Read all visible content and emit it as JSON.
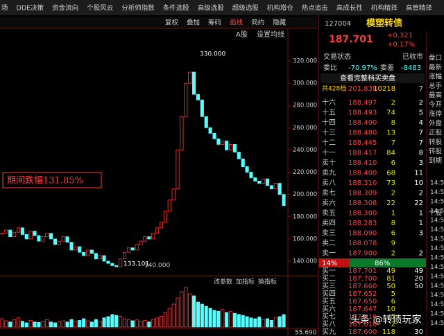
{
  "menu": [
    "场",
    "DDE决策",
    "资金流向",
    "个股风云",
    "分析师指数",
    "条件选股",
    "高级选股",
    "超级选股",
    "机构增仓",
    "热点追击",
    "高成长性",
    "机构精择",
    "高管精择"
  ],
  "toolbar": [
    "复权",
    "叠加",
    "筹码",
    "画线",
    "简约",
    "隐藏"
  ],
  "chart_header": {
    "market": "A股",
    "ma_setting": "设置均线"
  },
  "chart_data": {
    "type": "candle",
    "color_up": "#ff3c3c",
    "color_down": "#54ffff",
    "closes": [
      165,
      168,
      162,
      166,
      170,
      164,
      160,
      167,
      163,
      158,
      162,
      165,
      160,
      155,
      158,
      162,
      157,
      150,
      153,
      148,
      145,
      150,
      147,
      142,
      145,
      140,
      138,
      136,
      135,
      142,
      148,
      152,
      150,
      155,
      158,
      162,
      160,
      165,
      170,
      175,
      185,
      195,
      205,
      240,
      270,
      300,
      310,
      290,
      285,
      270,
      260,
      255,
      250,
      245,
      248,
      240,
      245,
      238,
      232,
      225,
      220,
      215,
      212,
      210,
      214,
      208,
      205,
      210,
      200,
      190
    ],
    "volumes": [
      20,
      15,
      12,
      18,
      22,
      14,
      10,
      16,
      12,
      11,
      14,
      18,
      12,
      10,
      13,
      15,
      12,
      18,
      14,
      16,
      20,
      15,
      12,
      18,
      14,
      22,
      25,
      30,
      28,
      26,
      20,
      18,
      15,
      17,
      14,
      16,
      12,
      18,
      22,
      26,
      35,
      45,
      55,
      70,
      85,
      95,
      80,
      75,
      60,
      55,
      50,
      45,
      40,
      38,
      42,
      35,
      38,
      33,
      30,
      28,
      25,
      22,
      20,
      24,
      18,
      20,
      16,
      22,
      25,
      30
    ],
    "ylim": [
      128,
      336
    ],
    "yticks": [
      {
        "value": 140,
        "label": "140.000"
      },
      {
        "value": 160,
        "label": "160.000"
      },
      {
        "value": 180,
        "label": "180.000"
      },
      {
        "value": 200,
        "label": "200.000"
      },
      {
        "value": 220,
        "label": "220.000"
      },
      {
        "value": 240,
        "label": "240.000"
      },
      {
        "value": 260,
        "label": "260.000"
      },
      {
        "value": 280,
        "label": "280.000"
      },
      {
        "value": 300,
        "label": "300.000"
      },
      {
        "value": 320,
        "label": "320.000"
      }
    ],
    "volume_ylim": [
      0,
      100
    ],
    "annotations": {
      "high": "330.000",
      "low": "133.101",
      "low_ref": "140.000",
      "period": "期间跌幅131.85%"
    }
  },
  "sub_panel": {
    "buttons": [
      "改参数",
      "加指标",
      "换指标"
    ],
    "value": "55.690"
  },
  "quote": {
    "code": "127004",
    "name": "模塑转债",
    "price": "187.701",
    "change": "+0.321",
    "change_pct": "+0.17%"
  },
  "status": {
    "state_label": "交易状态",
    "state": "已收市",
    "ratio_label": "委比",
    "ratio": "-70.97%",
    "diff_label": "委差",
    "diff": "-8483",
    "full_book": "查看完整档买卖盘",
    "total": "共428档",
    "total_price": "201.838",
    "total_vol": "10218",
    "total_n": "7"
  },
  "sell_levels": [
    {
      "label": "十六",
      "price": "188.497",
      "volume": "2",
      "delta": "2"
    },
    {
      "label": "十五",
      "price": "188.493",
      "volume": "74",
      "delta": "5"
    },
    {
      "label": "十四",
      "price": "188.490",
      "volume": "8",
      "delta": "4"
    },
    {
      "label": "十三",
      "price": "188.480",
      "volume": "13",
      "delta": "7"
    },
    {
      "label": "十二",
      "price": "188.445",
      "volume": "7",
      "delta": "7"
    },
    {
      "label": "十一",
      "price": "188.417",
      "volume": "84",
      "delta": "8"
    },
    {
      "label": "卖十",
      "price": "188.410",
      "volume": "6",
      "delta": "3"
    },
    {
      "label": "卖九",
      "price": "188.400",
      "volume": "68",
      "delta": "11"
    },
    {
      "label": "卖八",
      "price": "188.310",
      "volume": "73",
      "delta": "10"
    },
    {
      "label": "卖七",
      "price": "188.309",
      "volume": "2",
      "delta": "2"
    },
    {
      "label": "卖六",
      "price": "188.308",
      "volume": "22",
      "delta": "22"
    },
    {
      "label": "卖五",
      "price": "188.300",
      "volume": "1",
      "delta": "1"
    },
    {
      "label": "卖四",
      "price": "188.283",
      "volume": "8",
      "delta": "1"
    },
    {
      "label": "卖三",
      "price": "188.090",
      "volume": "6",
      "delta": "3"
    },
    {
      "label": "卖二",
      "price": "188.078",
      "volume": "9"
    },
    {
      "label": "卖一",
      "price": "187.900",
      "volume": "2",
      "delta": "2"
    }
  ],
  "balance": {
    "sell": "14%",
    "buy": "86%"
  },
  "buy_levels": [
    {
      "label": "买一",
      "price": "187.701",
      "volume": "49",
      "delta": "49"
    },
    {
      "label": "买二",
      "price": "187.700",
      "volume": "81",
      "delta": "20"
    },
    {
      "label": "买三",
      "price": "187.660",
      "volume": "50",
      "delta": "50"
    },
    {
      "label": "买四",
      "price": "187.652",
      "volume": "5"
    },
    {
      "label": "买五",
      "price": "187.650",
      "volume": "6"
    },
    {
      "label": "买六",
      "price": "187.647",
      "volume": "10"
    },
    {
      "label": "买七",
      "price": "187.616",
      "volume": "5"
    },
    {
      "label": "买八",
      "price": "187.610",
      "volume": "2"
    },
    {
      "label": "买九",
      "price": "187.600",
      "volume": "118",
      "delta": "30"
    }
  ],
  "side_labels": [
    "盘口",
    "最新",
    "涨幅",
    "总手",
    "最高",
    "今开",
    "涨停",
    "外盘",
    "正股",
    "转股",
    "转股",
    "到期",
    "个股"
  ],
  "side_times": [
    "14:5",
    "14:5",
    "14:5",
    "14:5",
    "14:5",
    "14:5",
    "14:5",
    "14:5",
    "14:5",
    "14:5",
    "14:5",
    "14:5",
    "14:5",
    "14:5",
    "14:5",
    "14:5"
  ],
  "watermark": "头条 @转债玩家"
}
